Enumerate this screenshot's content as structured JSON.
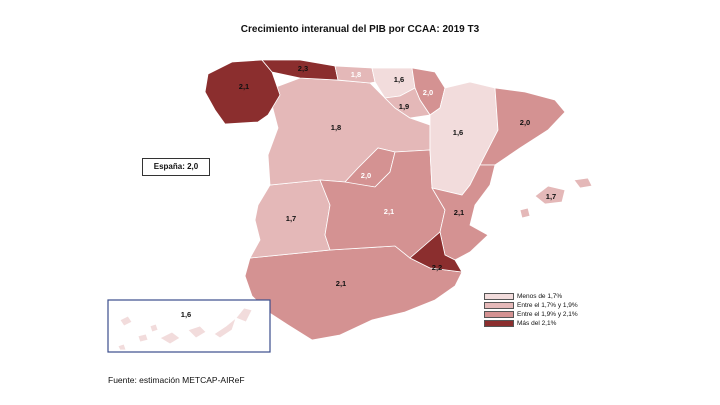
{
  "title": "Crecimiento interanual del PIB por CCAA: 2019 T3",
  "national": {
    "label": "España:",
    "value": "2,0"
  },
  "colors": {
    "low": "#f2dcdc",
    "mid_low": "#e4b8b8",
    "mid_high": "#d49292",
    "high": "#8b2e2e"
  },
  "regions": [
    {
      "name": "Galicia",
      "value": "2,1",
      "class": "high"
    },
    {
      "name": "Asturias",
      "value": "2,3",
      "class": "high"
    },
    {
      "name": "Cantabria",
      "value": "1,8",
      "class": "mid_low"
    },
    {
      "name": "País Vasco",
      "value": "1,6",
      "class": "low"
    },
    {
      "name": "Navarra",
      "value": "2,0",
      "class": "mid_high"
    },
    {
      "name": "La Rioja",
      "value": "1,9",
      "class": "mid_low"
    },
    {
      "name": "Aragón",
      "value": "1,6",
      "class": "low"
    },
    {
      "name": "Cataluña",
      "value": "2,0",
      "class": "mid_high"
    },
    {
      "name": "Castilla y León",
      "value": "1,8",
      "class": "mid_low"
    },
    {
      "name": "Madrid",
      "value": "2,0",
      "class": "mid_high"
    },
    {
      "name": "Castilla-La Mancha",
      "value": "2,1",
      "class": "mid_high"
    },
    {
      "name": "Extremadura",
      "value": "1,7",
      "class": "mid_low"
    },
    {
      "name": "Comunidad Valenciana",
      "value": "2,1",
      "class": "mid_high"
    },
    {
      "name": "Baleares",
      "value": "1,7",
      "class": "mid_low"
    },
    {
      "name": "Región de Murcia",
      "value": "2,2",
      "class": "high"
    },
    {
      "name": "Andalucía",
      "value": "2,1",
      "class": "mid_high"
    },
    {
      "name": "Canarias",
      "value": "1,6",
      "class": "low"
    }
  ],
  "legend": [
    {
      "label": "Menos de 1,7%",
      "class": "low"
    },
    {
      "label": "Entre el 1,7% y 1,9%",
      "class": "mid_low"
    },
    {
      "label": "Entre el 1,9% y 2,1%",
      "class": "mid_high"
    },
    {
      "label": "Más del 2,1%",
      "class": "high"
    }
  ],
  "source": "Fuente: estimación METCAP-AIReF"
}
